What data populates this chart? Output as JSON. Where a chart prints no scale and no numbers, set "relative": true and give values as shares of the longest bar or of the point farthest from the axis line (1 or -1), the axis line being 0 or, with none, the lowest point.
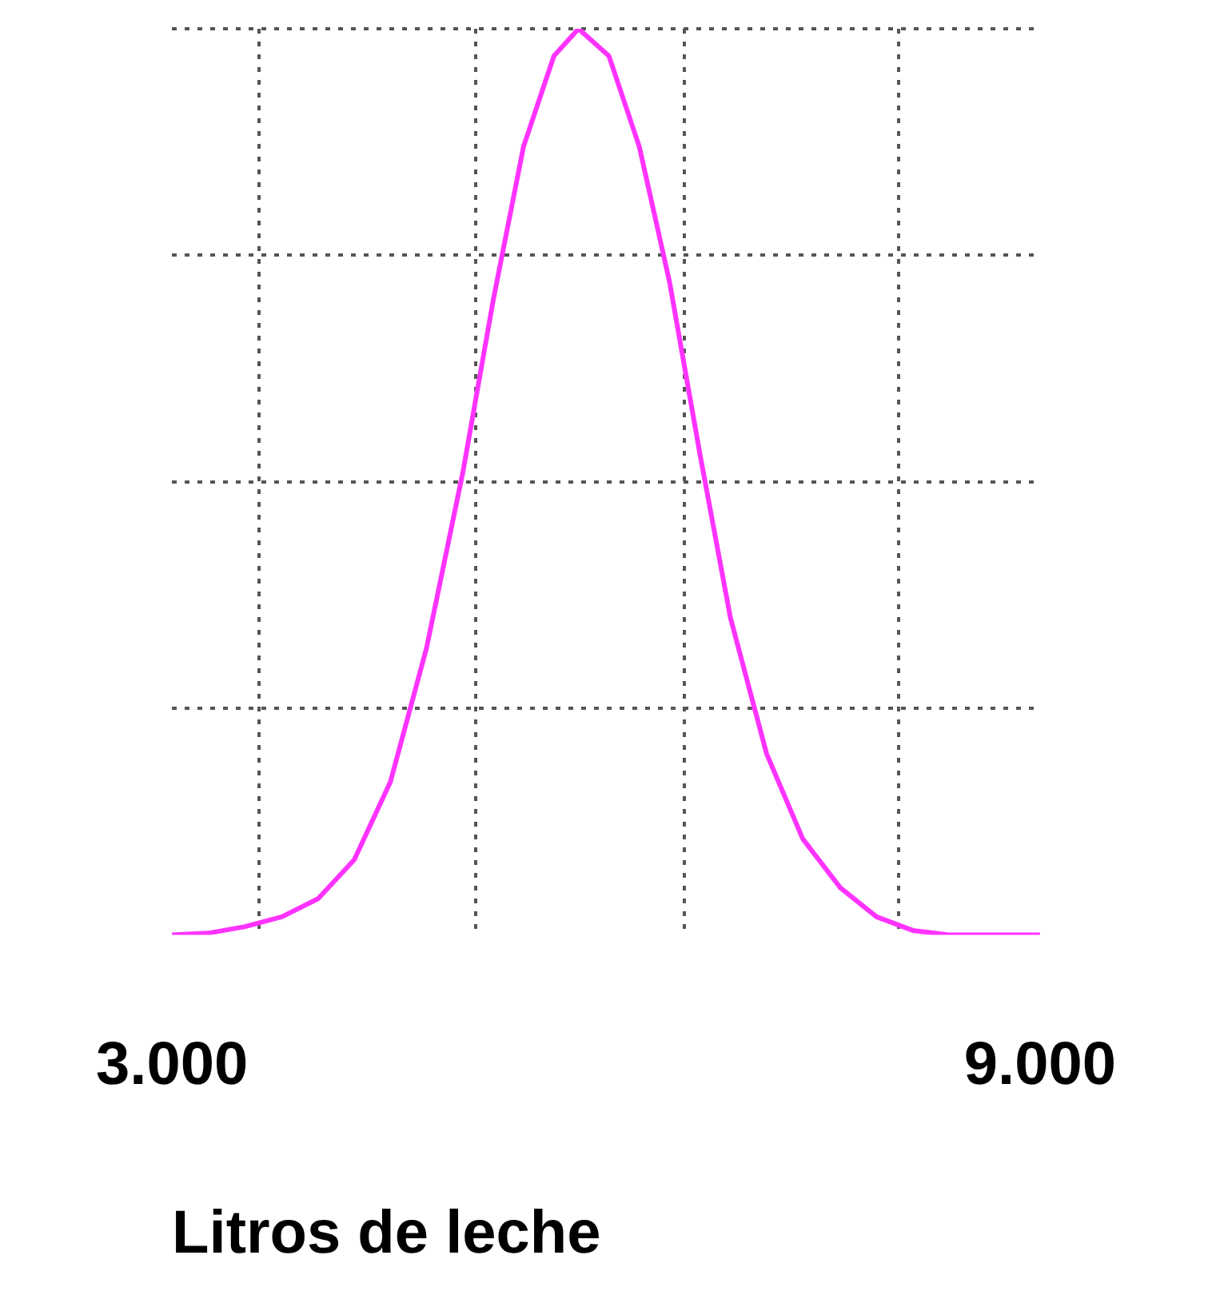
{
  "chart_data": {
    "type": "line",
    "xlabel": "Litros de leche",
    "relative": true,
    "grid": true,
    "marker": "none",
    "line_style": "solid",
    "legend": false,
    "xlim": [
      3000,
      9000
    ],
    "xticks": [
      {
        "value": 3000,
        "label": "3.000"
      },
      {
        "value": 3600,
        "label": null
      },
      {
        "value": 5100,
        "label": null
      },
      {
        "value": 6540,
        "label": null
      },
      {
        "value": 8020,
        "label": null
      },
      {
        "value": 9000,
        "label": "9.000"
      }
    ],
    "series": [
      {
        "color": "#ff33ff",
        "x": [
          3000,
          3250,
          3500,
          3760,
          4010,
          4260,
          4510,
          4760,
          5010,
          5220,
          5430,
          5640,
          5810,
          6020,
          6230,
          6440,
          6650,
          6860,
          7110,
          7360,
          7620,
          7870,
          8120,
          8370,
          9000
        ],
        "values": [
          0,
          0.002,
          0.009,
          0.02,
          0.04,
          0.083,
          0.169,
          0.317,
          0.51,
          0.7,
          0.87,
          0.97,
          1,
          0.97,
          0.87,
          0.72,
          0.53,
          0.35,
          0.2,
          0.106,
          0.052,
          0.02,
          0.005,
          0,
          0
        ]
      }
    ]
  }
}
